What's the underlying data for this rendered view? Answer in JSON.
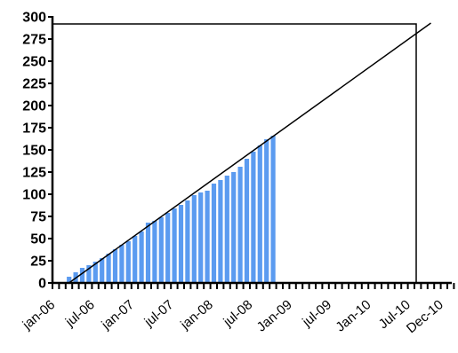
{
  "chart_data": {
    "type": "bar",
    "bar_color": "#5b9bf0",
    "reference_line_color": "#000000",
    "grid": false,
    "legend": "none",
    "title": "",
    "xlabel": "",
    "ylabel": "",
    "ylim": [
      0,
      300
    ],
    "yticks": [
      0,
      25,
      50,
      75,
      100,
      125,
      150,
      175,
      200,
      225,
      250,
      275,
      300
    ],
    "x_start_month": "jan-06",
    "month_count": 61,
    "xtick_labels": [
      {
        "month": "jan-06",
        "label": "jan-06"
      },
      {
        "month": "jul-06",
        "label": "jul-06"
      },
      {
        "month": "jan-07",
        "label": "jan-07"
      },
      {
        "month": "jul-07",
        "label": "jul-07"
      },
      {
        "month": "jan-08",
        "label": "jan-08"
      },
      {
        "month": "jul-08",
        "label": "jul-08"
      },
      {
        "month": "jan-09",
        "label": "Jan-09"
      },
      {
        "month": "jul-09",
        "label": "jul-09"
      },
      {
        "month": "jan-10",
        "label": "Jan-10"
      },
      {
        "month": "jul-10",
        "label": "Jul-10"
      },
      {
        "month": "dec-10",
        "label": "Dec-10"
      }
    ],
    "categories": [
      "mar-06",
      "apr-06",
      "may-06",
      "jun-06",
      "jul-06",
      "aug-06",
      "sep-06",
      "oct-06",
      "nov-06",
      "dec-06",
      "jan-07",
      "feb-07",
      "mar-07",
      "apr-07",
      "may-07",
      "jun-07",
      "jul-07",
      "aug-07",
      "sep-07",
      "oct-07",
      "nov-07",
      "dec-07",
      "jan-08",
      "feb-08",
      "mar-08",
      "apr-08",
      "may-08",
      "jun-08",
      "jul-08",
      "aug-08",
      "sep-08",
      "oct-08"
    ],
    "values": [
      7,
      12,
      17,
      20,
      24,
      28,
      33,
      38,
      43,
      47,
      53,
      58,
      68,
      70,
      74,
      79,
      84,
      88,
      93,
      99,
      102,
      104,
      112,
      116,
      121,
      125,
      131,
      140,
      148,
      155,
      162,
      166
    ],
    "reference_line": {
      "from": {
        "month": "mar-06",
        "y": 0
      },
      "to": {
        "month": "oct-10",
        "y": 293
      }
    }
  }
}
